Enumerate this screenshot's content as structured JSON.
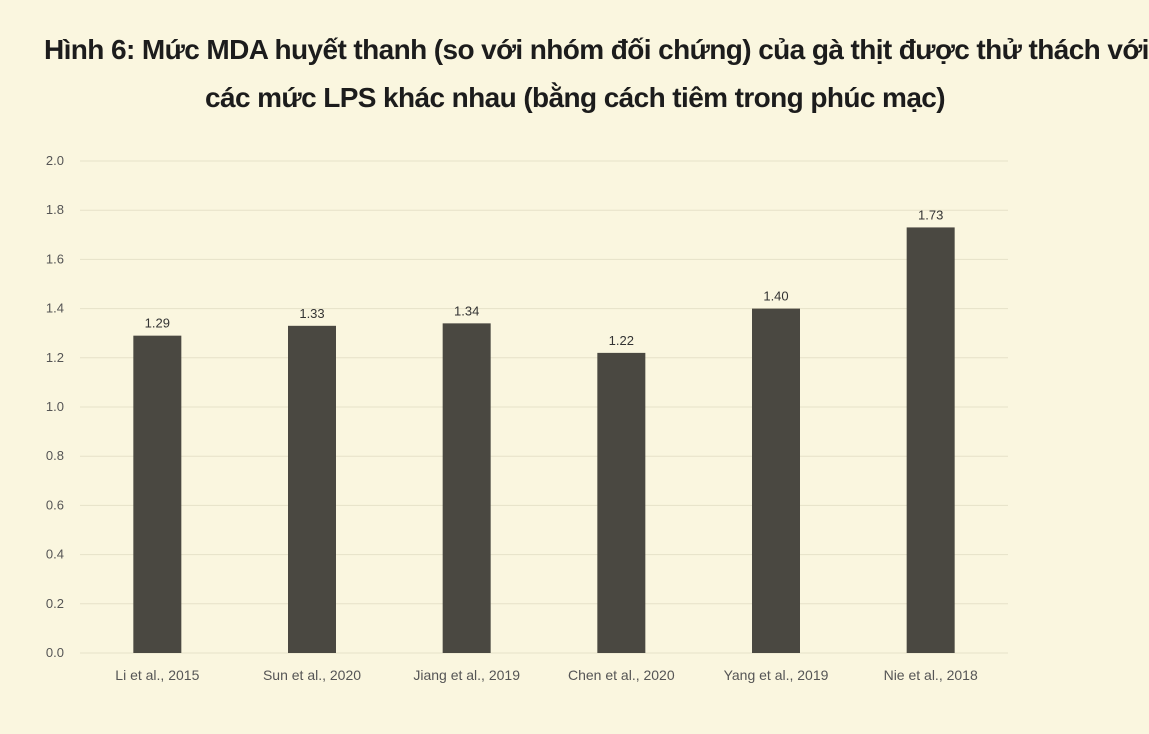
{
  "title": {
    "line1": "Hình 6: Mức MDA huyết thanh (so với nhóm đối chứng) của gà thịt được thử thách với",
    "line2": "các mức LPS khác nhau (bằng cách tiêm trong phúc mạc)"
  },
  "colors": {
    "background": "#faf6df",
    "bar": "#4a4841",
    "grid": "#e6e1c8"
  },
  "chart_data": {
    "type": "bar",
    "title": "Hình 6: Mức MDA huyết thanh (so với nhóm đối chứng) của gà thịt được thử thách với các mức LPS khác nhau (bằng cách tiêm trong phúc mạc)",
    "xlabel": "",
    "ylabel": "",
    "categories": [
      "Li et al., 2015",
      "Sun et al., 2020",
      "Jiang et al., 2019",
      "Chen et al., 2020",
      "Yang et al., 2019",
      "Nie et al., 2018"
    ],
    "values": [
      1.29,
      1.33,
      1.34,
      1.22,
      1.4,
      1.73
    ],
    "data_labels": [
      "1.29",
      "1.33",
      "1.34",
      "1.22",
      "1.40",
      "1.73"
    ],
    "ylim": [
      0,
      2.0
    ],
    "yticks": [
      0.0,
      0.2,
      0.4,
      0.6,
      0.8,
      1.0,
      1.2,
      1.4,
      1.6,
      1.8,
      2.0
    ],
    "ytick_labels": [
      "0.0",
      "0.2",
      "0.4",
      "0.6",
      "0.8",
      "1.0",
      "1.2",
      "1.4",
      "1.6",
      "1.8",
      "2.0"
    ],
    "grid": true,
    "legend": "none"
  }
}
